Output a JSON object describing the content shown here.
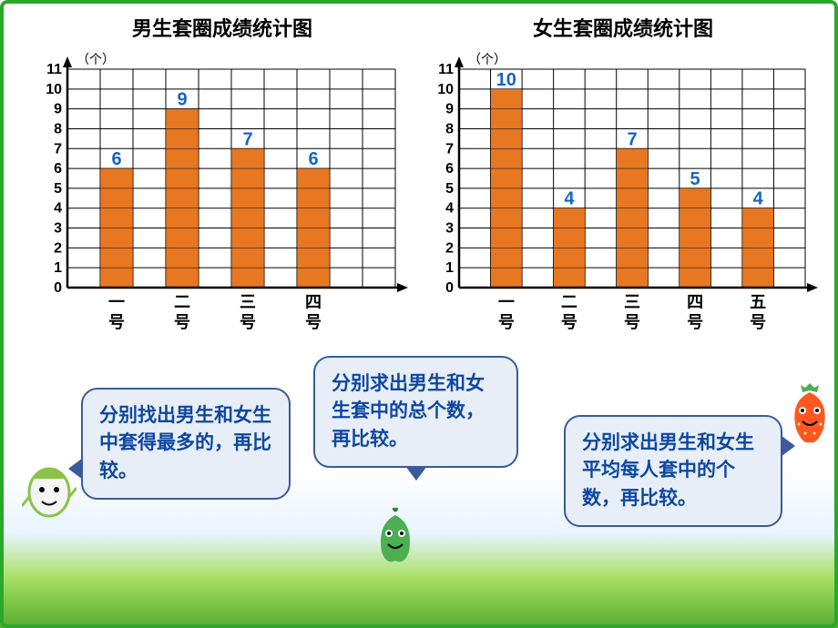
{
  "charts": {
    "boys": {
      "title": "男生套圈成绩统计图",
      "type": "bar",
      "unit_label": "（个）",
      "categories": [
        "一号",
        "二号",
        "三号",
        "四号"
      ],
      "values": [
        6,
        9,
        7,
        6
      ],
      "value_labels": [
        "6",
        "9",
        "7",
        "6"
      ],
      "bar_color": "#e87722",
      "value_label_color": "#1565c0",
      "grid_color": "#000000",
      "background_color": "#ffffff",
      "ylim": [
        0,
        11
      ],
      "ytick_step": 1,
      "y_labels": [
        "0",
        "1",
        "2",
        "3",
        "4",
        "5",
        "6",
        "7",
        "8",
        "9",
        "10",
        "11"
      ],
      "title_fontsize": 22,
      "label_fontsize": 16,
      "bar_width_units": 1,
      "gap_units": 1,
      "axis_arrow": true
    },
    "girls": {
      "title": "女生套圈成绩统计图",
      "type": "bar",
      "unit_label": "（个）",
      "categories": [
        "一号",
        "二号",
        "三号",
        "四号",
        "五号"
      ],
      "values": [
        10,
        4,
        7,
        5,
        4
      ],
      "value_labels": [
        "10",
        "4",
        "7",
        "5",
        "4"
      ],
      "bar_color": "#e87722",
      "value_label_color": "#1565c0",
      "grid_color": "#000000",
      "background_color": "#ffffff",
      "ylim": [
        0,
        11
      ],
      "ytick_step": 1,
      "y_labels": [
        "0",
        "1",
        "2",
        "3",
        "4",
        "5",
        "6",
        "7",
        "8",
        "9",
        "10",
        "11"
      ],
      "title_fontsize": 22,
      "label_fontsize": 16,
      "bar_width_units": 1,
      "gap_units": 1,
      "axis_arrow": true
    }
  },
  "bubbles": {
    "b1": "分别找出男生和女生中套得最多的，再比较。",
    "b2": "分别求出男生和女生套中的总个数，再比较。",
    "b3": "分别求出男生和女生平均每人套中的个数，再比较。"
  },
  "characters": {
    "c1_primary": "#8bc34a",
    "c1_secondary": "#f5f5f5",
    "c2_primary": "#4caf50",
    "c2_secondary": "#2e7d32",
    "c3_primary": "#ff5722",
    "c3_secondary": "#4caf50"
  }
}
